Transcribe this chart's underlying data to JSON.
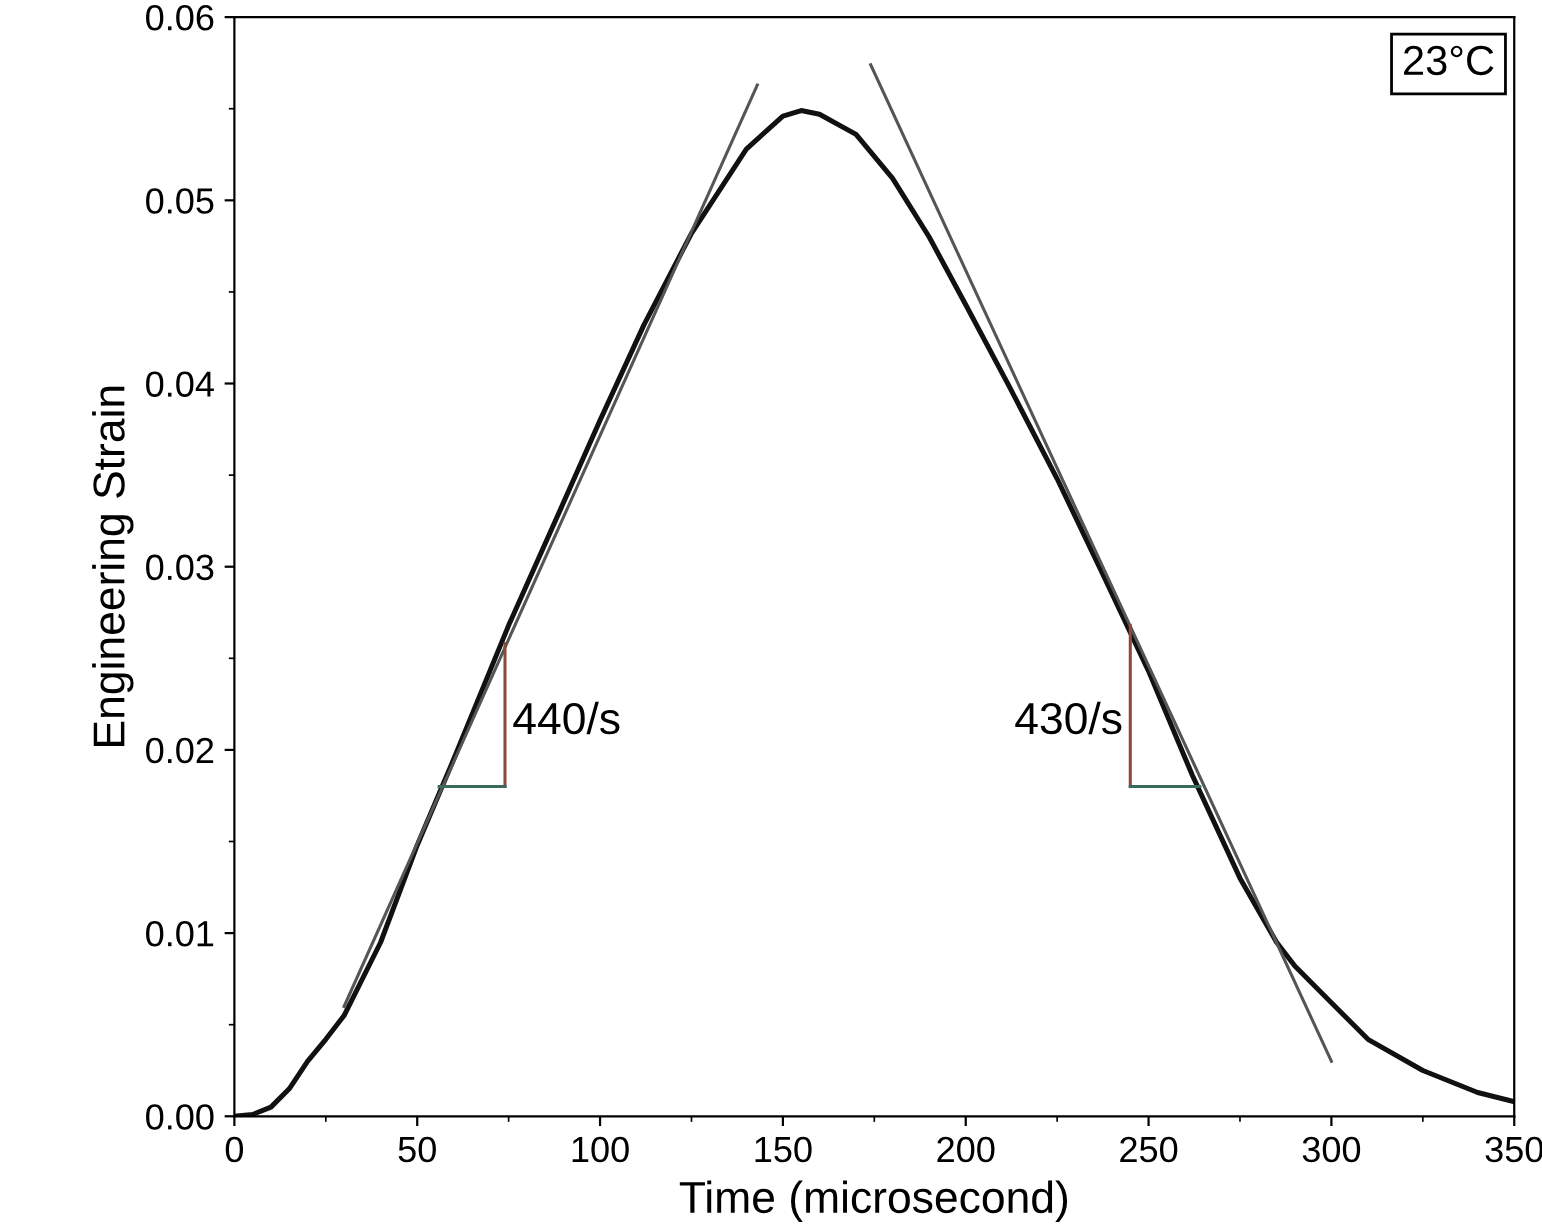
{
  "chart_data": {
    "type": "line",
    "xlabel": "Time (microsecond)",
    "ylabel": "Engineering Strain",
    "xlim": [
      0,
      350
    ],
    "ylim": [
      0,
      0.06
    ],
    "xticks": [
      0,
      50,
      100,
      150,
      200,
      250,
      300,
      350
    ],
    "yticks": [
      {
        "value": 0,
        "label": "0.00"
      },
      {
        "value": 0.01,
        "label": "0.01"
      },
      {
        "value": 0.02,
        "label": "0.02"
      },
      {
        "value": 0.03,
        "label": "0.03"
      },
      {
        "value": 0.04,
        "label": "0.04"
      },
      {
        "value": 0.05,
        "label": "0.05"
      },
      {
        "value": 0.06,
        "label": "0.06"
      }
    ],
    "grid": false,
    "marker": "none",
    "line_style": "solid",
    "series": [
      {
        "color": "#111111",
        "x": [
          0,
          5,
          10,
          15,
          20,
          25,
          30,
          40,
          50,
          60,
          75,
          90,
          100,
          112,
          125,
          140,
          150,
          155,
          160,
          170,
          180,
          190,
          200,
          212,
          225,
          237,
          250,
          262,
          275,
          285,
          290,
          300,
          310,
          325,
          340,
          350
        ],
        "values": [
          0,
          0.0001,
          0.0005,
          0.0015,
          0.003,
          0.0042,
          0.0055,
          0.0095,
          0.0148,
          0.0195,
          0.0268,
          0.0335,
          0.038,
          0.0432,
          0.0482,
          0.0528,
          0.0546,
          0.0549,
          0.0547,
          0.0536,
          0.0512,
          0.048,
          0.0443,
          0.0398,
          0.0348,
          0.0298,
          0.0243,
          0.0186,
          0.013,
          0.0095,
          0.0082,
          0.0062,
          0.0042,
          0.0025,
          0.0013,
          0.0008
        ]
      },
      {
        "color": "#555555",
        "x": [
          30,
          143
        ],
        "values": [
          0.006,
          0.0563
        ]
      },
      {
        "color": "#555555",
        "x": [
          174,
          300
        ],
        "values": [
          0.0574,
          0.003
        ]
      },
      {
        "color": "#8b4a3a",
        "x": [
          74,
          74
        ],
        "values": [
          0.018,
          0.0258
        ]
      },
      {
        "color": "#3a6b5a",
        "x": [
          56,
          74
        ],
        "values": [
          0.018,
          0.018
        ]
      },
      {
        "color": "#8b4a3a",
        "x": [
          245,
          245
        ],
        "values": [
          0.018,
          0.0268
        ]
      },
      {
        "color": "#3a6b5a",
        "x": [
          245,
          264
        ],
        "values": [
          0.018,
          0.018
        ]
      }
    ],
    "annotations": [
      {
        "text": "440/s",
        "x": 76,
        "y": 0.0215
      },
      {
        "text": "430/s",
        "x": 243,
        "y": 0.0215
      },
      "23°C"
    ]
  }
}
